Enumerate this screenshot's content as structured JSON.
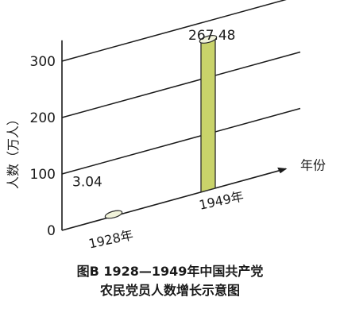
{
  "chart_data": {
    "type": "bar",
    "title_line1": "图B 1928—1949年中国共产党",
    "title_line2": "农民党员人数增长示意图",
    "ylabel": "人数（万人）",
    "xlabel": "年份",
    "categories": [
      "1928年",
      "1949年"
    ],
    "values": [
      3.04,
      267.48
    ],
    "value_labels": [
      "3.04",
      "267.48"
    ],
    "yticks": [
      0,
      100,
      200,
      300
    ],
    "ylim": [
      0,
      330
    ],
    "grid": true,
    "colors": {
      "bar_fill": "#c9d36a",
      "bar_edge": "#2a2a2a",
      "ink": "#1a1a1a"
    }
  }
}
